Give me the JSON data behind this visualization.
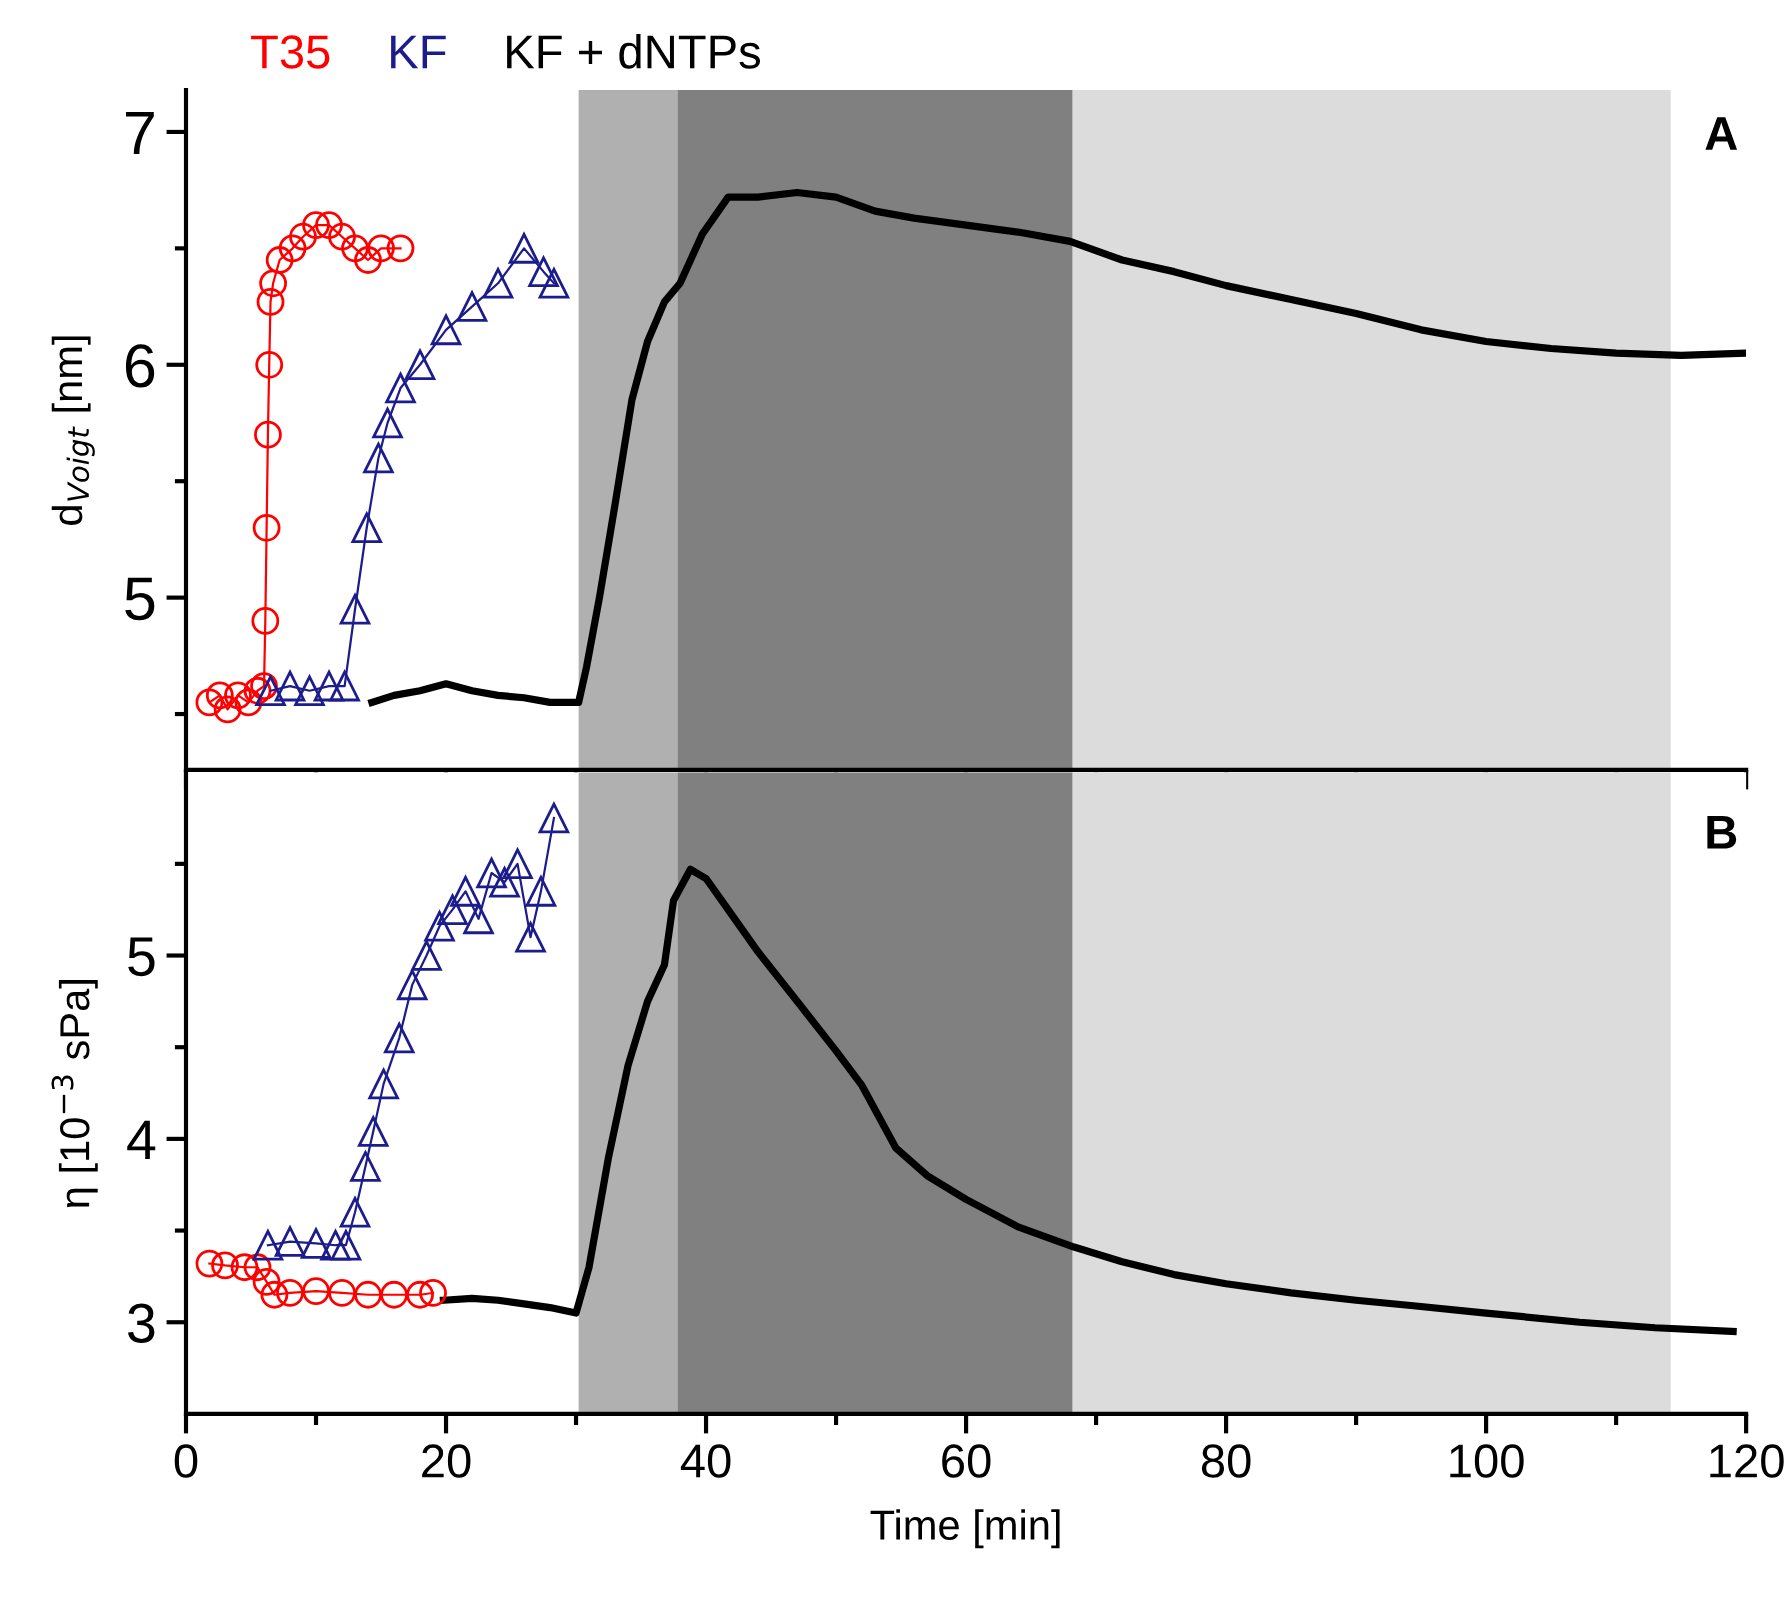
{
  "chart_data": [
    {
      "type": "line",
      "ylabel": "d$_{Voigt}$ [nm]",
      "annotations": [
        "A"
      ],
      "xlim": [
        0,
        120
      ],
      "ylim": [
        4.26,
        7.18
      ],
      "xticks": [
        0,
        {
          "value": 10,
          "label": null
        },
        20,
        {
          "value": 30,
          "label": null
        },
        40,
        {
          "value": 50,
          "label": null
        },
        60,
        {
          "value": 70,
          "label": null
        },
        80,
        {
          "value": 90,
          "label": null
        },
        100,
        {
          "value": 110,
          "label": null
        },
        120
      ],
      "yticks": [
        {
          "value": 4.5,
          "label": null
        },
        5,
        {
          "value": 5.5,
          "label": null
        },
        6,
        {
          "value": 6.5,
          "label": null
        },
        7
      ],
      "tick_labels": "y",
      "grid": false,
      "bands": [
        {
          "axis": "x",
          "from": 30.2,
          "to": 37.8,
          "color": "#b0b0b0"
        },
        {
          "axis": "x",
          "from": 37.8,
          "to": 68.2,
          "color": "#808080"
        },
        {
          "axis": "x",
          "from": 68.2,
          "to": 114.2,
          "color": "#dcdcdc"
        }
      ],
      "series": [
        {
          "name": "T35",
          "color": "#ff0000",
          "marker": "circle",
          "x": [
            1.8,
            2.6,
            3.2,
            4.0,
            4.8,
            5.5,
            6.0,
            6.1,
            6.2,
            6.3,
            6.4,
            6.5,
            6.7,
            7.2,
            8.2,
            9,
            10,
            11,
            12,
            13,
            14,
            15,
            16.5
          ],
          "values": [
            4.55,
            4.58,
            4.52,
            4.58,
            4.55,
            4.6,
            4.62,
            4.9,
            5.3,
            5.7,
            6.0,
            6.27,
            6.35,
            6.45,
            6.5,
            6.55,
            6.6,
            6.6,
            6.55,
            6.5,
            6.45,
            6.5,
            6.5
          ]
        },
        {
          "name": "KF",
          "color": "#1c1c8c",
          "marker": "triangle",
          "x": [
            6.5,
            8,
            9.5,
            11,
            12.2,
            13,
            13.9,
            14.8,
            15.5,
            16.5,
            18,
            20,
            22,
            24,
            26,
            27.5,
            28.3
          ],
          "values": [
            4.6,
            4.62,
            4.6,
            4.62,
            4.62,
            4.95,
            5.3,
            5.6,
            5.75,
            5.9,
            6.0,
            6.15,
            6.25,
            6.35,
            6.5,
            6.4,
            6.35
          ]
        },
        {
          "name": "KF + dNTPs",
          "color": "#000000",
          "marker": "none",
          "x": [
            14.3,
            16,
            18,
            20,
            22,
            24,
            26,
            28,
            30.2,
            30.8,
            31.8,
            33,
            34.3,
            35.5,
            36.8,
            38,
            39.7,
            41.7,
            44,
            47,
            50,
            53,
            56,
            60,
            64,
            68,
            72,
            76,
            80,
            85,
            90,
            95,
            100,
            105,
            110,
            115,
            120
          ],
          "values": [
            4.55,
            4.58,
            4.6,
            4.63,
            4.6,
            4.58,
            4.57,
            4.55,
            4.55,
            4.7,
            5.0,
            5.4,
            5.85,
            6.1,
            6.27,
            6.35,
            6.56,
            6.72,
            6.72,
            6.74,
            6.72,
            6.66,
            6.63,
            6.6,
            6.57,
            6.53,
            6.45,
            6.4,
            6.34,
            6.28,
            6.22,
            6.15,
            6.1,
            6.07,
            6.05,
            6.04,
            6.05
          ]
        }
      ]
    },
    {
      "type": "line",
      "xlabel": "Time [min]",
      "ylabel": "η [10$^{−3}$ sPa]",
      "annotations": [
        "B"
      ],
      "xlim": [
        0,
        120
      ],
      "ylim": [
        2.5,
        6.0
      ],
      "xticks": [
        0,
        {
          "value": 10,
          "label": null
        },
        20,
        {
          "value": 30,
          "label": null
        },
        40,
        {
          "value": 50,
          "label": null
        },
        60,
        {
          "value": 70,
          "label": null
        },
        80,
        {
          "value": 90,
          "label": null
        },
        100,
        {
          "value": 110,
          "label": null
        },
        120
      ],
      "yticks": [
        3,
        {
          "value": 3.5,
          "label": null
        },
        4,
        {
          "value": 4.5,
          "label": null
        },
        5,
        {
          "value": 5.5,
          "label": null
        }
      ],
      "grid": false,
      "bands": [
        {
          "axis": "x",
          "from": 30.2,
          "to": 37.8,
          "color": "#b0b0b0"
        },
        {
          "axis": "x",
          "from": 37.8,
          "to": 68.2,
          "color": "#808080"
        },
        {
          "axis": "x",
          "from": 68.2,
          "to": 114.2,
          "color": "#dcdcdc"
        }
      ],
      "series": [
        {
          "color": "#ff0000",
          "marker": "circle",
          "x": [
            1.8,
            3,
            4.5,
            5.5,
            6.2,
            6.8,
            8,
            10,
            12,
            14,
            16,
            18,
            19
          ],
          "values": [
            3.32,
            3.31,
            3.3,
            3.3,
            3.22,
            3.15,
            3.16,
            3.17,
            3.16,
            3.15,
            3.15,
            3.15,
            3.16
          ]
        },
        {
          "color": "#1c1c8c",
          "marker": "triangle",
          "x": [
            6.3,
            8,
            10,
            11.5,
            12.3,
            13,
            13.8,
            14.4,
            15.2,
            16.4,
            17.4,
            18.5,
            19.5,
            20.5,
            21.5,
            22.5,
            23.5,
            24.5,
            25.5,
            26.5,
            27.3,
            28.3
          ],
          "values": [
            3.42,
            3.44,
            3.43,
            3.42,
            3.42,
            3.6,
            3.85,
            4.04,
            4.3,
            4.55,
            4.84,
            5.0,
            5.16,
            5.25,
            5.35,
            5.2,
            5.45,
            5.4,
            5.5,
            5.1,
            5.35,
            5.75
          ]
        },
        {
          "color": "#000000",
          "marker": "none",
          "x": [
            19.8,
            22,
            24,
            26,
            28,
            30,
            31,
            32.5,
            34,
            35.5,
            36.8,
            37.5,
            38.8,
            40,
            41.7,
            44,
            46.9,
            50,
            52,
            54.6,
            57,
            60,
            64,
            68.3,
            72,
            76,
            80,
            85,
            90,
            94.4,
            100,
            107.2,
            113,
            119
          ],
          "values": [
            3.12,
            3.13,
            3.12,
            3.1,
            3.08,
            3.05,
            3.3,
            3.9,
            4.4,
            4.75,
            4.95,
            5.3,
            5.47,
            5.42,
            5.25,
            5.02,
            4.76,
            4.48,
            4.29,
            3.95,
            3.8,
            3.67,
            3.52,
            3.41,
            3.33,
            3.26,
            3.21,
            3.16,
            3.12,
            3.09,
            3.05,
            3.0,
            2.97,
            2.95
          ]
        }
      ]
    }
  ]
}
